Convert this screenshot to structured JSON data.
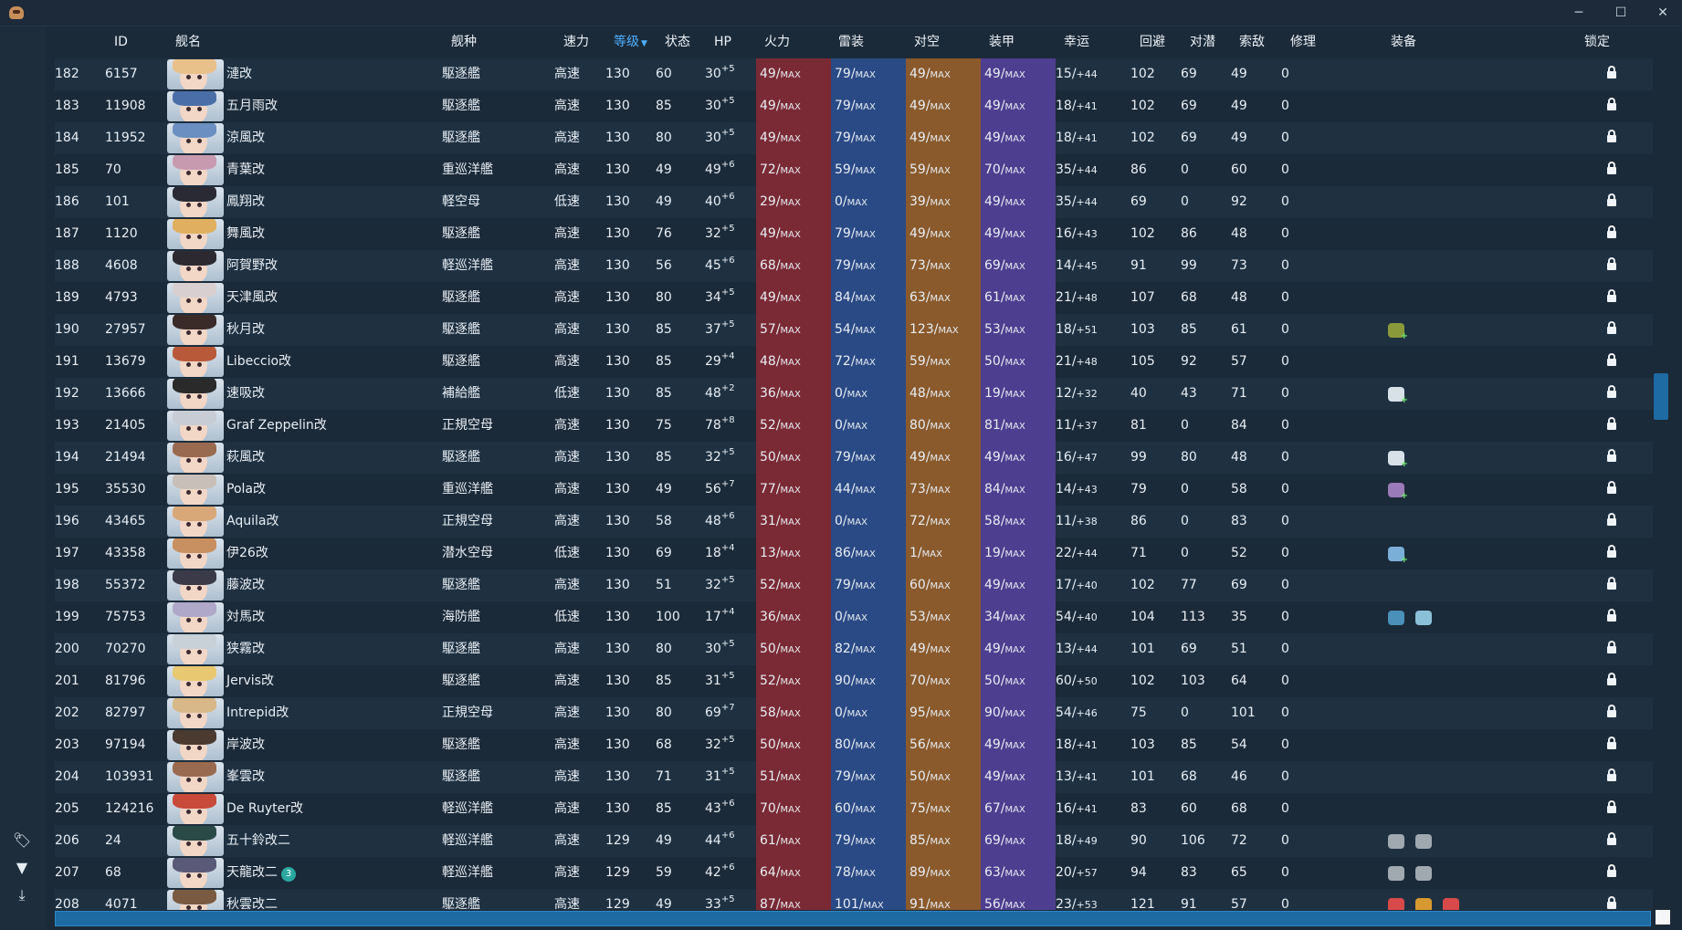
{
  "window": {
    "minimize_glyph": "─",
    "maximize_glyph": "☐",
    "close_glyph": "✕"
  },
  "siderail": {
    "icons": [
      "tag-icon",
      "filter-icon",
      "download-icon"
    ],
    "glyphs": [
      "🏷",
      "▼",
      "⤓"
    ]
  },
  "columns": [
    {
      "key": "index",
      "label": ""
    },
    {
      "key": "id",
      "label": "ID"
    },
    {
      "key": "name",
      "label": "舰名"
    },
    {
      "key": "type",
      "label": "舰种"
    },
    {
      "key": "speed",
      "label": "速力"
    },
    {
      "key": "level",
      "label": "等级",
      "sorted": true
    },
    {
      "key": "cond",
      "label": "状态"
    },
    {
      "key": "hp",
      "label": "HP"
    },
    {
      "key": "firepower",
      "label": "火力"
    },
    {
      "key": "torpedo",
      "label": "雷装"
    },
    {
      "key": "aa",
      "label": "对空"
    },
    {
      "key": "armor",
      "label": "装甲"
    },
    {
      "key": "luck",
      "label": "幸运"
    },
    {
      "key": "evasion",
      "label": "回避"
    },
    {
      "key": "asw",
      "label": "对潜"
    },
    {
      "key": "los",
      "label": "索敌"
    },
    {
      "key": "repair",
      "label": "修理"
    },
    {
      "key": "equipment",
      "label": "装备"
    },
    {
      "key": "lock",
      "label": "锁定"
    }
  ],
  "max_suffix": "MAX",
  "colors": {
    "firepower": "#7a2a34",
    "torpedo": "#2a4a85",
    "aa": "#8a5a2c",
    "armor": "#4e3e8f",
    "accent": "#4fb0ff"
  },
  "rows": [
    {
      "index": "182",
      "id": "6157",
      "name": "漣改",
      "type": "駆逐艦",
      "speed": "高速",
      "level": "130",
      "cond": "60",
      "hp": "30",
      "hp_sup": "+5",
      "fp": "49/",
      "tp": "79/",
      "aa": "49/",
      "ar": "49/",
      "luck": "15/",
      "luck_b": "+44",
      "ev": "102",
      "asw": "69",
      "los": "49",
      "repair": "0",
      "equip": [],
      "hair": "#e8c08a"
    },
    {
      "index": "183",
      "id": "11908",
      "name": "五月雨改",
      "type": "駆逐艦",
      "speed": "高速",
      "level": "130",
      "cond": "85",
      "hp": "30",
      "hp_sup": "+5",
      "fp": "49/",
      "tp": "79/",
      "aa": "49/",
      "ar": "49/",
      "luck": "18/",
      "luck_b": "+41",
      "ev": "102",
      "asw": "69",
      "los": "49",
      "repair": "0",
      "equip": [],
      "hair": "#4a6fa8"
    },
    {
      "index": "184",
      "id": "11952",
      "name": "涼風改",
      "type": "駆逐艦",
      "speed": "高速",
      "level": "130",
      "cond": "80",
      "hp": "30",
      "hp_sup": "+5",
      "fp": "49/",
      "tp": "79/",
      "aa": "49/",
      "ar": "49/",
      "luck": "18/",
      "luck_b": "+41",
      "ev": "102",
      "asw": "69",
      "los": "49",
      "repair": "0",
      "equip": [],
      "hair": "#6a8fc0"
    },
    {
      "index": "185",
      "id": "70",
      "name": "青葉改",
      "type": "重巡洋艦",
      "speed": "高速",
      "level": "130",
      "cond": "49",
      "hp": "49",
      "hp_sup": "+6",
      "fp": "72/",
      "tp": "59/",
      "aa": "59/",
      "ar": "70/",
      "luck": "35/",
      "luck_b": "+44",
      "ev": "86",
      "asw": "0",
      "los": "60",
      "repair": "0",
      "equip": [],
      "hair": "#c79ab0"
    },
    {
      "index": "186",
      "id": "101",
      "name": "鳳翔改",
      "type": "軽空母",
      "speed": "低速",
      "level": "130",
      "cond": "49",
      "hp": "40",
      "hp_sup": "+6",
      "fp": "29/",
      "tp": "0/",
      "aa": "39/",
      "ar": "49/",
      "luck": "35/",
      "luck_b": "+44",
      "ev": "69",
      "asw": "0",
      "los": "92",
      "repair": "0",
      "equip": [],
      "hair": "#2a2a35"
    },
    {
      "index": "187",
      "id": "1120",
      "name": "舞風改",
      "type": "駆逐艦",
      "speed": "高速",
      "level": "130",
      "cond": "76",
      "hp": "32",
      "hp_sup": "+5",
      "fp": "49/",
      "tp": "79/",
      "aa": "49/",
      "ar": "49/",
      "luck": "16/",
      "luck_b": "+43",
      "ev": "102",
      "asw": "86",
      "los": "48",
      "repair": "0",
      "equip": [],
      "hair": "#e0b060"
    },
    {
      "index": "188",
      "id": "4608",
      "name": "阿賀野改",
      "type": "軽巡洋艦",
      "speed": "高速",
      "level": "130",
      "cond": "56",
      "hp": "45",
      "hp_sup": "+6",
      "fp": "68/",
      "tp": "79/",
      "aa": "73/",
      "ar": "69/",
      "luck": "14/",
      "luck_b": "+45",
      "ev": "91",
      "asw": "99",
      "los": "73",
      "repair": "0",
      "equip": [],
      "hair": "#2c2a30"
    },
    {
      "index": "189",
      "id": "4793",
      "name": "天津風改",
      "type": "駆逐艦",
      "speed": "高速",
      "level": "130",
      "cond": "80",
      "hp": "34",
      "hp_sup": "+5",
      "fp": "49/",
      "tp": "84/",
      "aa": "63/",
      "ar": "61/",
      "luck": "21/",
      "luck_b": "+48",
      "ev": "107",
      "asw": "68",
      "los": "48",
      "repair": "0",
      "equip": [],
      "hair": "#d8d0d0"
    },
    {
      "index": "190",
      "id": "27957",
      "name": "秋月改",
      "type": "駆逐艦",
      "speed": "高速",
      "level": "130",
      "cond": "85",
      "hp": "37",
      "hp_sup": "+5",
      "fp": "57/",
      "tp": "54/",
      "aa": "123/",
      "ar": "53/",
      "luck": "18/",
      "luck_b": "+51",
      "ev": "103",
      "asw": "85",
      "los": "61",
      "repair": "0",
      "equip": [
        "#8a9a3a"
      ],
      "hair": "#3a2a28"
    },
    {
      "index": "191",
      "id": "13679",
      "name": "Libeccio改",
      "type": "駆逐艦",
      "speed": "高速",
      "level": "130",
      "cond": "85",
      "hp": "29",
      "hp_sup": "+4",
      "fp": "48/",
      "tp": "72/",
      "aa": "59/",
      "ar": "50/",
      "luck": "21/",
      "luck_b": "+48",
      "ev": "105",
      "asw": "92",
      "los": "57",
      "repair": "0",
      "equip": [],
      "hair": "#b85a3a"
    },
    {
      "index": "192",
      "id": "13666",
      "name": "速吸改",
      "type": "補給艦",
      "speed": "低速",
      "level": "130",
      "cond": "85",
      "hp": "48",
      "hp_sup": "+2",
      "fp": "36/",
      "tp": "0/",
      "aa": "48/",
      "ar": "19/",
      "luck": "12/",
      "luck_b": "+32",
      "ev": "40",
      "asw": "43",
      "los": "71",
      "repair": "0",
      "equip": [
        "#d8e0e8"
      ],
      "hair": "#2a2a2a"
    },
    {
      "index": "193",
      "id": "21405",
      "name": "Graf Zeppelin改",
      "type": "正規空母",
      "speed": "高速",
      "level": "130",
      "cond": "75",
      "hp": "78",
      "hp_sup": "+8",
      "fp": "52/",
      "tp": "0/",
      "aa": "80/",
      "ar": "81/",
      "luck": "11/",
      "luck_b": "+37",
      "ev": "81",
      "asw": "0",
      "los": "84",
      "repair": "0",
      "equip": [],
      "hair": "#c8ccd4"
    },
    {
      "index": "194",
      "id": "21494",
      "name": "萩風改",
      "type": "駆逐艦",
      "speed": "高速",
      "level": "130",
      "cond": "85",
      "hp": "32",
      "hp_sup": "+5",
      "fp": "50/",
      "tp": "79/",
      "aa": "49/",
      "ar": "49/",
      "luck": "16/",
      "luck_b": "+47",
      "ev": "99",
      "asw": "80",
      "los": "48",
      "repair": "0",
      "equip": [
        "#d8e0e8"
      ],
      "hair": "#9a6a50"
    },
    {
      "index": "195",
      "id": "35530",
      "name": "Pola改",
      "type": "重巡洋艦",
      "speed": "高速",
      "level": "130",
      "cond": "49",
      "hp": "56",
      "hp_sup": "+7",
      "fp": "77/",
      "tp": "44/",
      "aa": "73/",
      "ar": "84/",
      "luck": "14/",
      "luck_b": "+43",
      "ev": "79",
      "asw": "0",
      "los": "58",
      "repair": "0",
      "equip": [
        "#9a7ab8"
      ],
      "hair": "#c8c0b8"
    },
    {
      "index": "196",
      "id": "43465",
      "name": "Aquila改",
      "type": "正規空母",
      "speed": "高速",
      "level": "130",
      "cond": "58",
      "hp": "48",
      "hp_sup": "+6",
      "fp": "31/",
      "tp": "0/",
      "aa": "72/",
      "ar": "58/",
      "luck": "11/",
      "luck_b": "+38",
      "ev": "86",
      "asw": "0",
      "los": "83",
      "repair": "0",
      "equip": [],
      "hair": "#d8a878"
    },
    {
      "index": "197",
      "id": "43358",
      "name": "伊26改",
      "type": "潜水空母",
      "speed": "低速",
      "level": "130",
      "cond": "69",
      "hp": "18",
      "hp_sup": "+4",
      "fp": "13/",
      "tp": "86/",
      "aa": "1/",
      "ar": "19/",
      "luck": "22/",
      "luck_b": "+44",
      "ev": "71",
      "asw": "0",
      "los": "52",
      "repair": "0",
      "equip": [
        "#7ab0d8"
      ],
      "hair": "#c89060"
    },
    {
      "index": "198",
      "id": "55372",
      "name": "藤波改",
      "type": "駆逐艦",
      "speed": "高速",
      "level": "130",
      "cond": "51",
      "hp": "32",
      "hp_sup": "+5",
      "fp": "52/",
      "tp": "79/",
      "aa": "60/",
      "ar": "49/",
      "luck": "17/",
      "luck_b": "+40",
      "ev": "102",
      "asw": "77",
      "los": "69",
      "repair": "0",
      "equip": [],
      "hair": "#3a3a48"
    },
    {
      "index": "199",
      "id": "75753",
      "name": "対馬改",
      "type": "海防艦",
      "speed": "低速",
      "level": "130",
      "cond": "100",
      "hp": "17",
      "hp_sup": "+4",
      "fp": "36/",
      "tp": "0/",
      "aa": "53/",
      "ar": "34/",
      "luck": "54/",
      "luck_b": "+40",
      "ev": "104",
      "asw": "113",
      "los": "35",
      "repair": "0",
      "equip": [
        "#4a90b8",
        "#8ac0d8"
      ],
      "hair": "#b0a8c8"
    },
    {
      "index": "200",
      "id": "70270",
      "name": "狭霧改",
      "type": "駆逐艦",
      "speed": "高速",
      "level": "130",
      "cond": "80",
      "hp": "30",
      "hp_sup": "+5",
      "fp": "50/",
      "tp": "82/",
      "aa": "49/",
      "ar": "49/",
      "luck": "13/",
      "luck_b": "+44",
      "ev": "101",
      "asw": "69",
      "los": "51",
      "repair": "0",
      "equip": [],
      "hair": "#c8d0d8"
    },
    {
      "index": "201",
      "id": "81796",
      "name": "Jervis改",
      "type": "駆逐艦",
      "speed": "高速",
      "level": "130",
      "cond": "85",
      "hp": "31",
      "hp_sup": "+5",
      "fp": "52/",
      "tp": "90/",
      "aa": "70/",
      "ar": "50/",
      "luck": "60/",
      "luck_b": "+50",
      "ev": "102",
      "asw": "103",
      "los": "64",
      "repair": "0",
      "equip": [],
      "hair": "#e8c870"
    },
    {
      "index": "202",
      "id": "82797",
      "name": "Intrepid改",
      "type": "正規空母",
      "speed": "高速",
      "level": "130",
      "cond": "80",
      "hp": "69",
      "hp_sup": "+7",
      "fp": "58/",
      "tp": "0/",
      "aa": "95/",
      "ar": "90/",
      "luck": "54/",
      "luck_b": "+46",
      "ev": "75",
      "asw": "0",
      "los": "101",
      "repair": "0",
      "equip": [],
      "hair": "#d8b888"
    },
    {
      "index": "203",
      "id": "97194",
      "name": "岸波改",
      "type": "駆逐艦",
      "speed": "高速",
      "level": "130",
      "cond": "68",
      "hp": "32",
      "hp_sup": "+5",
      "fp": "50/",
      "tp": "80/",
      "aa": "56/",
      "ar": "49/",
      "luck": "18/",
      "luck_b": "+41",
      "ev": "103",
      "asw": "85",
      "los": "54",
      "repair": "0",
      "equip": [],
      "hair": "#4a3a30"
    },
    {
      "index": "204",
      "id": "103931",
      "name": "峯雲改",
      "type": "駆逐艦",
      "speed": "高速",
      "level": "130",
      "cond": "71",
      "hp": "31",
      "hp_sup": "+5",
      "fp": "51/",
      "tp": "79/",
      "aa": "50/",
      "ar": "49/",
      "luck": "13/",
      "luck_b": "+41",
      "ev": "101",
      "asw": "68",
      "los": "46",
      "repair": "0",
      "equip": [],
      "hair": "#9a6a50"
    },
    {
      "index": "205",
      "id": "124216",
      "name": "De Ruyter改",
      "type": "軽巡洋艦",
      "speed": "高速",
      "level": "130",
      "cond": "85",
      "hp": "43",
      "hp_sup": "+6",
      "fp": "70/",
      "tp": "60/",
      "aa": "75/",
      "ar": "67/",
      "luck": "16/",
      "luck_b": "+41",
      "ev": "83",
      "asw": "60",
      "los": "68",
      "repair": "0",
      "equip": [],
      "hair": "#c84a3a"
    },
    {
      "index": "206",
      "id": "24",
      "name": "五十鈴改二",
      "type": "軽巡洋艦",
      "speed": "高速",
      "level": "129",
      "cond": "49",
      "hp": "44",
      "hp_sup": "+6",
      "fp": "61/",
      "tp": "79/",
      "aa": "85/",
      "ar": "69/",
      "luck": "18/",
      "luck_b": "+49",
      "ev": "90",
      "asw": "106",
      "los": "72",
      "repair": "0",
      "equip": [
        "#a0a8b0",
        "#a0a8b0"
      ],
      "hair": "#2a4a48"
    },
    {
      "index": "207",
      "id": "68",
      "name": "天龍改二",
      "type": "軽巡洋艦",
      "speed": "高速",
      "level": "129",
      "cond": "59",
      "hp": "42",
      "hp_sup": "+6",
      "fp": "64/",
      "tp": "78/",
      "aa": "89/",
      "ar": "63/",
      "luck": "20/",
      "luck_b": "+57",
      "ev": "94",
      "asw": "83",
      "los": "65",
      "repair": "0",
      "equip": [
        "#a0a8b0",
        "#a0a8b0"
      ],
      "hair": "#5a5a78",
      "badge": "3"
    },
    {
      "index": "208",
      "id": "4071",
      "name": "秋雲改二",
      "type": "駆逐艦",
      "speed": "高速",
      "level": "129",
      "cond": "49",
      "hp": "33",
      "hp_sup": "+5",
      "fp": "87/",
      "tp": "101/",
      "aa": "91/",
      "ar": "56/",
      "luck": "23/",
      "luck_b": "+53",
      "ev": "121",
      "asw": "91",
      "los": "57",
      "repair": "0",
      "equip": [
        "#d84a4a",
        "#d89a30",
        "#d84a4a"
      ],
      "hair": "#7a5a40"
    }
  ]
}
